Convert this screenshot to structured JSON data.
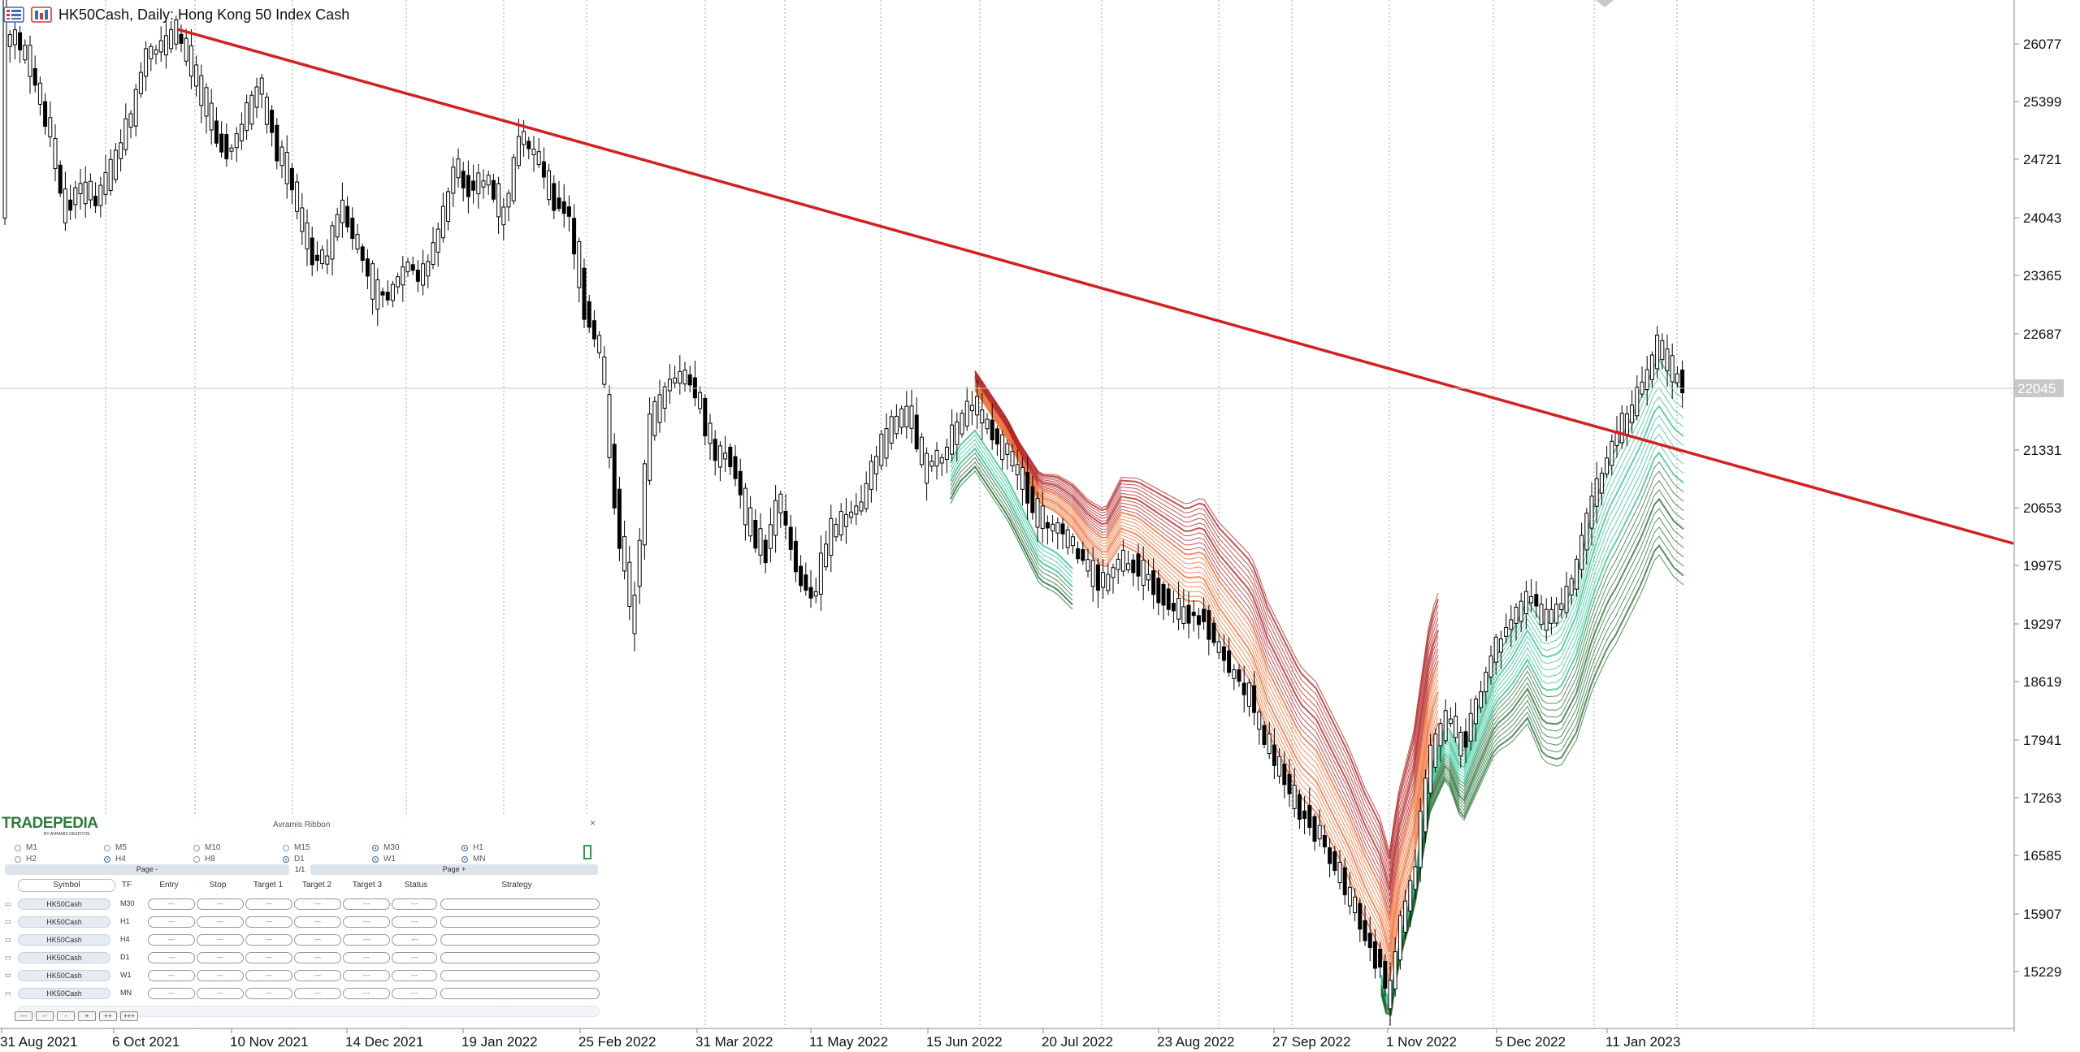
{
  "header": {
    "symbol_title": "HK50Cash, Daily:  Hong Kong 50 Index Cash"
  },
  "price_axis": {
    "labels": [
      "26077",
      "25399",
      "24721",
      "24043",
      "23365",
      "22687",
      "22045",
      "21331",
      "20653",
      "19975",
      "19297",
      "18619",
      "17941",
      "17263",
      "16585",
      "15907",
      "15229"
    ],
    "current_price": "22045"
  },
  "date_axis": {
    "labels": [
      "31 Aug 2021",
      "6 Oct 2021",
      "10 Nov 2021",
      "14 Dec 2021",
      "19 Jan 2022",
      "25 Feb 2022",
      "31 Mar 2022",
      "11 May 2022",
      "15 Jun 2022",
      "20 Jul 2022",
      "23 Aug 2022",
      "27 Sep 2022",
      "1 Nov 2022",
      "5 Dec 2022",
      "11 Jan 2023"
    ]
  },
  "colors": {
    "trendline": "#d42020",
    "ribbon_bull": "#2ebf8f",
    "ribbon_bull_dark": "#1d6b2c",
    "ribbon_bear": "#ee6a2e",
    "ribbon_bear_dark": "#b01818",
    "candle": "#000000"
  },
  "panel": {
    "logo": "TRADEPEDIA",
    "logo_sub": "BY AVRAMIS DESPOTIS",
    "title": "Avramis Ribbon",
    "close": "×",
    "timeframes": [
      {
        "label": "M1",
        "on": false
      },
      {
        "label": "M5",
        "on": false
      },
      {
        "label": "M10",
        "on": false
      },
      {
        "label": "M15",
        "on": false
      },
      {
        "label": "M30",
        "on": true
      },
      {
        "label": "H1",
        "on": true
      },
      {
        "label": "H2",
        "on": false
      },
      {
        "label": "H4",
        "on": true
      },
      {
        "label": "H8",
        "on": false
      },
      {
        "label": "D1",
        "on": true
      },
      {
        "label": "W1",
        "on": true
      },
      {
        "label": "MN",
        "on": true
      }
    ],
    "page_prev": "Page -",
    "page_indicator": "1/1",
    "page_next": "Page +",
    "columns": [
      "Symbol",
      "TF",
      "Entry",
      "Stop",
      "Target 1",
      "Target 2",
      "Target 3",
      "Status",
      "Strategy"
    ],
    "rows": [
      {
        "symbol": "HK50Cash",
        "tf": "M30",
        "entry": "---",
        "stop": "---",
        "t1": "---",
        "t2": "---",
        "t3": "---",
        "status": "---"
      },
      {
        "symbol": "HK50Cash",
        "tf": "H1",
        "entry": "---",
        "stop": "---",
        "t1": "---",
        "t2": "---",
        "t3": "---",
        "status": "---"
      },
      {
        "symbol": "HK50Cash",
        "tf": "H4",
        "entry": "---",
        "stop": "---",
        "t1": "---",
        "t2": "---",
        "t3": "---",
        "status": "---"
      },
      {
        "symbol": "HK50Cash",
        "tf": "D1",
        "entry": "---",
        "stop": "---",
        "t1": "---",
        "t2": "---",
        "t3": "---",
        "status": "---"
      },
      {
        "symbol": "HK50Cash",
        "tf": "W1",
        "entry": "---",
        "stop": "---",
        "t1": "---",
        "t2": "---",
        "t3": "---",
        "status": "---"
      },
      {
        "symbol": "HK50Cash",
        "tf": "MN",
        "entry": "---",
        "stop": "---",
        "t1": "---",
        "t2": "---",
        "t3": "---",
        "status": "---"
      }
    ],
    "buttons": [
      "---",
      "--",
      "-",
      "+",
      "++",
      "+++"
    ]
  }
}
